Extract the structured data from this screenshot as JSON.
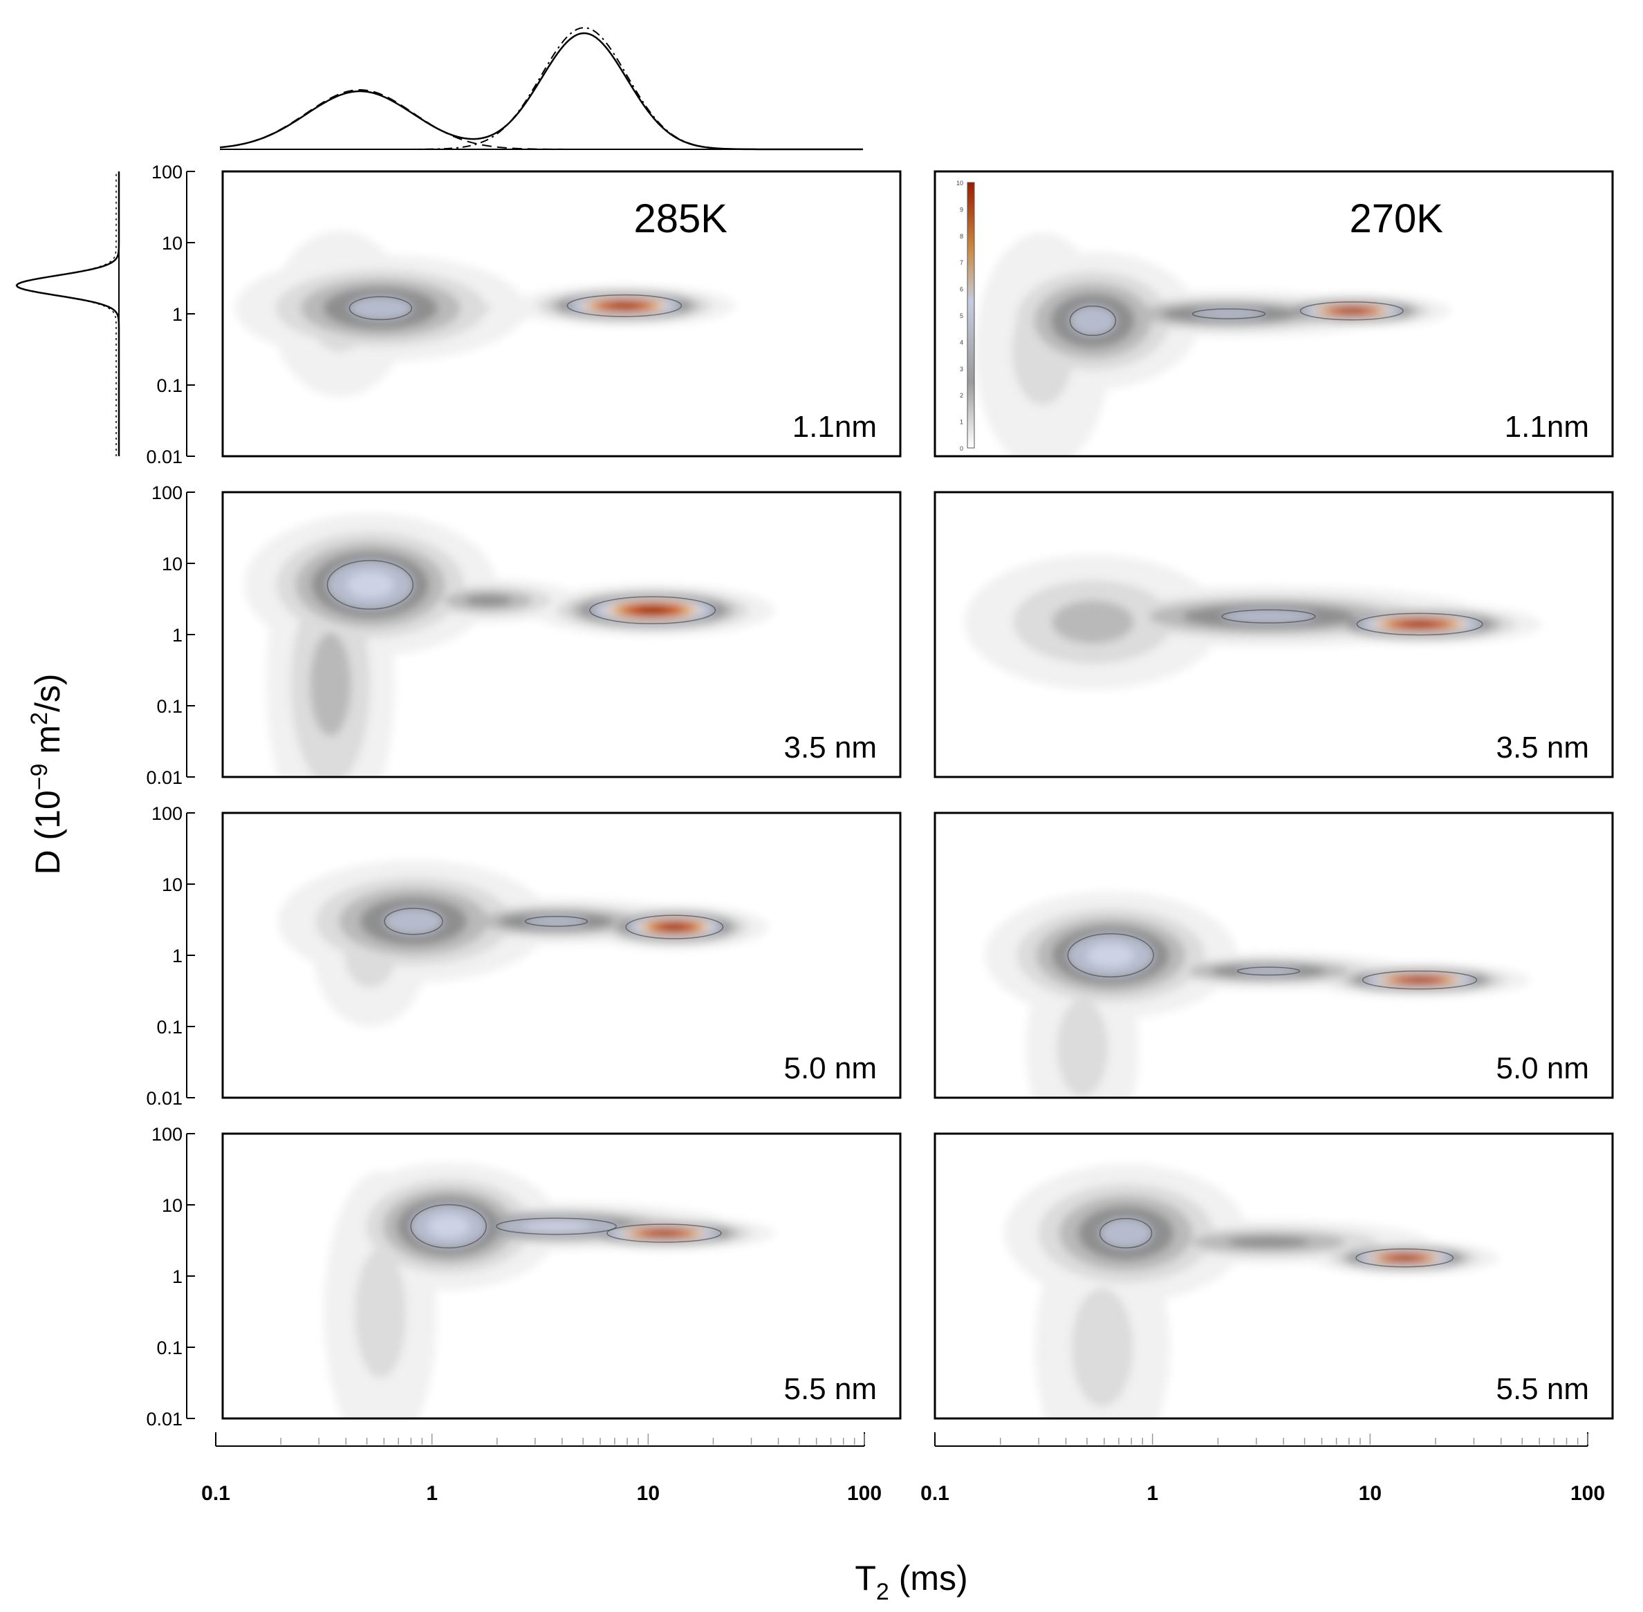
{
  "chart_data": {
    "type": "heatmap",
    "title": "",
    "xlabel": "T2 (ms)",
    "xlabel_main": "T",
    "xlabel_sub": "2",
    "xlabel_rest": " (ms)",
    "ylabel": "D (10^-9 m^2/s)",
    "ylabel_prefix": "D (10",
    "ylabel_exp1": "−9",
    "ylabel_mid": " m",
    "ylabel_exp2": "2",
    "ylabel_suffix": "/s)",
    "x_scale": "log",
    "y_scale": "log",
    "xlim": [
      0.1,
      100
    ],
    "ylim": [
      0.01,
      100
    ],
    "x_ticks": [
      "0.1",
      "1",
      "10",
      "100"
    ],
    "y_ticks": [
      "100",
      "10",
      "1",
      "0.1",
      "0.01"
    ],
    "columns": [
      "285K",
      "270K"
    ],
    "colorbar": {
      "min": 0,
      "max": 10,
      "ticks": [
        "10",
        "9",
        "8",
        "7",
        "6",
        "5",
        "4",
        "3",
        "2",
        "1",
        "0"
      ],
      "colors": [
        "#ffffff",
        "#9a9a9a",
        "#c5cbe0",
        "#cc8a40",
        "#9b1c00"
      ]
    },
    "marginals": {
      "top": {
        "description": "T2 projection",
        "peaks_ms": [
          0.45,
          5
        ]
      },
      "left": {
        "description": "D projection",
        "peak_D": 2.5
      }
    },
    "panels": [
      {
        "column": "285K",
        "label": "1.1nm",
        "blobs": [
          {
            "t2": 0.5,
            "d": 1.2,
            "peak": 5,
            "sx": 0.3,
            "sy": 0.35
          },
          {
            "t2": 0.33,
            "d": 1.0,
            "peak": 2,
            "sx": 0.18,
            "sy": 0.7
          },
          {
            "t2": 1.0,
            "d": 1.2,
            "peak": 2,
            "sx": 0.25,
            "sy": 0.18
          },
          {
            "t2": 6,
            "d": 1.3,
            "peak": 10,
            "sx": 0.2,
            "sy": 0.12
          }
        ]
      },
      {
        "column": "270K",
        "label": "1.1nm",
        "blobs": [
          {
            "t2": 0.5,
            "d": 0.8,
            "peak": 5,
            "sx": 0.22,
            "sy": 0.45
          },
          {
            "t2": 0.3,
            "d": 0.3,
            "peak": 2,
            "sx": 0.18,
            "sy": 1.0
          },
          {
            "t2": 2,
            "d": 1.0,
            "peak": 5,
            "sx": 0.35,
            "sy": 0.15
          },
          {
            "t2": 7,
            "d": 1.1,
            "peak": 10,
            "sx": 0.18,
            "sy": 0.1
          }
        ]
      },
      {
        "column": "285K",
        "label": "3.5 nm",
        "blobs": [
          {
            "t2": 0.45,
            "d": 5,
            "peak": 6,
            "sx": 0.25,
            "sy": 0.45
          },
          {
            "t2": 0.3,
            "d": 0.2,
            "peak": 3,
            "sx": 0.15,
            "sy": 1.2
          },
          {
            "t2": 1.5,
            "d": 3,
            "peak": 4,
            "sx": 0.2,
            "sy": 0.15
          },
          {
            "t2": 8,
            "d": 2.2,
            "peak": 10,
            "sx": 0.22,
            "sy": 0.15
          }
        ]
      },
      {
        "column": "270K",
        "label": "3.5 nm",
        "blobs": [
          {
            "t2": 0.5,
            "d": 1.5,
            "peak": 3,
            "sx": 0.3,
            "sy": 0.5
          },
          {
            "t2": 3,
            "d": 1.8,
            "peak": 5,
            "sx": 0.45,
            "sy": 0.2
          },
          {
            "t2": 14,
            "d": 1.4,
            "peak": 10,
            "sx": 0.22,
            "sy": 0.12
          }
        ]
      },
      {
        "column": "285K",
        "label": "5.0 nm",
        "blobs": [
          {
            "t2": 0.7,
            "d": 3,
            "peak": 5,
            "sx": 0.28,
            "sy": 0.4
          },
          {
            "t2": 0.45,
            "d": 1,
            "peak": 2,
            "sx": 0.15,
            "sy": 0.6
          },
          {
            "t2": 3,
            "d": 3,
            "peak": 5,
            "sx": 0.3,
            "sy": 0.15
          },
          {
            "t2": 10,
            "d": 2.5,
            "peak": 10,
            "sx": 0.17,
            "sy": 0.13
          }
        ]
      },
      {
        "column": "270K",
        "label": "5.0 nm",
        "blobs": [
          {
            "t2": 0.6,
            "d": 1.0,
            "peak": 6,
            "sx": 0.25,
            "sy": 0.4
          },
          {
            "t2": 0.45,
            "d": 0.05,
            "peak": 2,
            "sx": 0.15,
            "sy": 0.9
          },
          {
            "t2": 3,
            "d": 0.6,
            "peak": 5,
            "sx": 0.3,
            "sy": 0.12
          },
          {
            "t2": 14,
            "d": 0.45,
            "peak": 10,
            "sx": 0.2,
            "sy": 0.1
          }
        ]
      },
      {
        "column": "285K",
        "label": "5.5 nm",
        "blobs": [
          {
            "t2": 1.0,
            "d": 5,
            "peak": 6,
            "sx": 0.22,
            "sy": 0.4
          },
          {
            "t2": 0.5,
            "d": 0.3,
            "peak": 2,
            "sx": 0.15,
            "sy": 1.2
          },
          {
            "t2": 3,
            "d": 5,
            "peak": 6,
            "sx": 0.35,
            "sy": 0.15
          },
          {
            "t2": 9,
            "d": 4,
            "peak": 10,
            "sx": 0.2,
            "sy": 0.1
          }
        ]
      },
      {
        "column": "270K",
        "label": "5.5 nm",
        "blobs": [
          {
            "t2": 0.7,
            "d": 4,
            "peak": 5,
            "sx": 0.25,
            "sy": 0.45
          },
          {
            "t2": 0.55,
            "d": 0.1,
            "peak": 2,
            "sx": 0.18,
            "sy": 1.1
          },
          {
            "t2": 3,
            "d": 3,
            "peak": 4,
            "sx": 0.35,
            "sy": 0.15
          },
          {
            "t2": 12,
            "d": 1.8,
            "peak": 10,
            "sx": 0.17,
            "sy": 0.1
          }
        ]
      }
    ]
  }
}
